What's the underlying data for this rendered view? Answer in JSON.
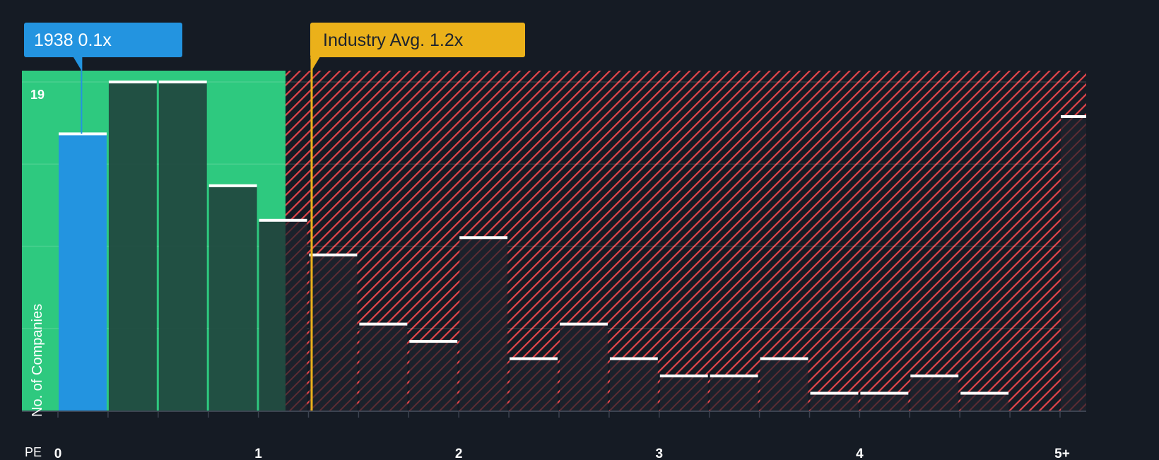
{
  "callouts": {
    "company": {
      "label": "1938 0.1x",
      "value": 0.1,
      "color": "#2394e0"
    },
    "industry": {
      "label": "Industry Avg. 1.2x",
      "value": 1.2,
      "color": "#ebb11a"
    }
  },
  "axis": {
    "x_prefix": "PE",
    "y_max_label": "19",
    "ylabel": "No. of Companies"
  },
  "colors": {
    "background": "#151b24",
    "undervalued_zone": "#2ec97f",
    "overvalued_hatch": "#e2454a",
    "company_bar": "#2394e0",
    "bar_dark_green": "#214a40",
    "bar_dark": "#1c222c",
    "bar_cap": "#ffffff",
    "gridline": "#2f3540"
  },
  "chart_data": {
    "type": "bar",
    "title": "",
    "xlabel": "PE",
    "ylabel": "No. of Companies",
    "x_ticks": [
      "0",
      "1",
      "2",
      "3",
      "4",
      "5+"
    ],
    "bin_width": 0.25,
    "categories": [
      "0-0.25",
      "0.25-0.5",
      "0.5-0.75",
      "0.75-1",
      "1-1.25",
      "1.25-1.5",
      "1.5-1.75",
      "1.75-2",
      "2-2.25",
      "2.25-2.5",
      "2.5-2.75",
      "2.75-3",
      "3-3.25",
      "3.25-3.5",
      "3.5-3.75",
      "3.75-4",
      "4-4.25",
      "4.25-4.5",
      "4.5-4.75",
      "4.75-5",
      "5+"
    ],
    "values": [
      16,
      19,
      19,
      13,
      11,
      9,
      5,
      4,
      10,
      3,
      5,
      3,
      2,
      2,
      3,
      1,
      1,
      2,
      1,
      0,
      17
    ],
    "highlight_bin": 0,
    "ylim": [
      0,
      19
    ],
    "y_gridlines": [
      0,
      4.75,
      9.5,
      14.25,
      19
    ],
    "annotations": [
      {
        "text": "1938 0.1x",
        "x": 0.1
      },
      {
        "text": "Industry Avg. 1.2x",
        "x": 1.2
      }
    ],
    "zones": [
      {
        "name": "below-industry-average",
        "from": 0,
        "to": 1.14,
        "color": "#2ec97f"
      },
      {
        "name": "above-industry-average",
        "from": 1.14,
        "to": 5.25,
        "pattern": "red-diagonal-hatch"
      }
    ],
    "legend": "none",
    "grid": true
  }
}
